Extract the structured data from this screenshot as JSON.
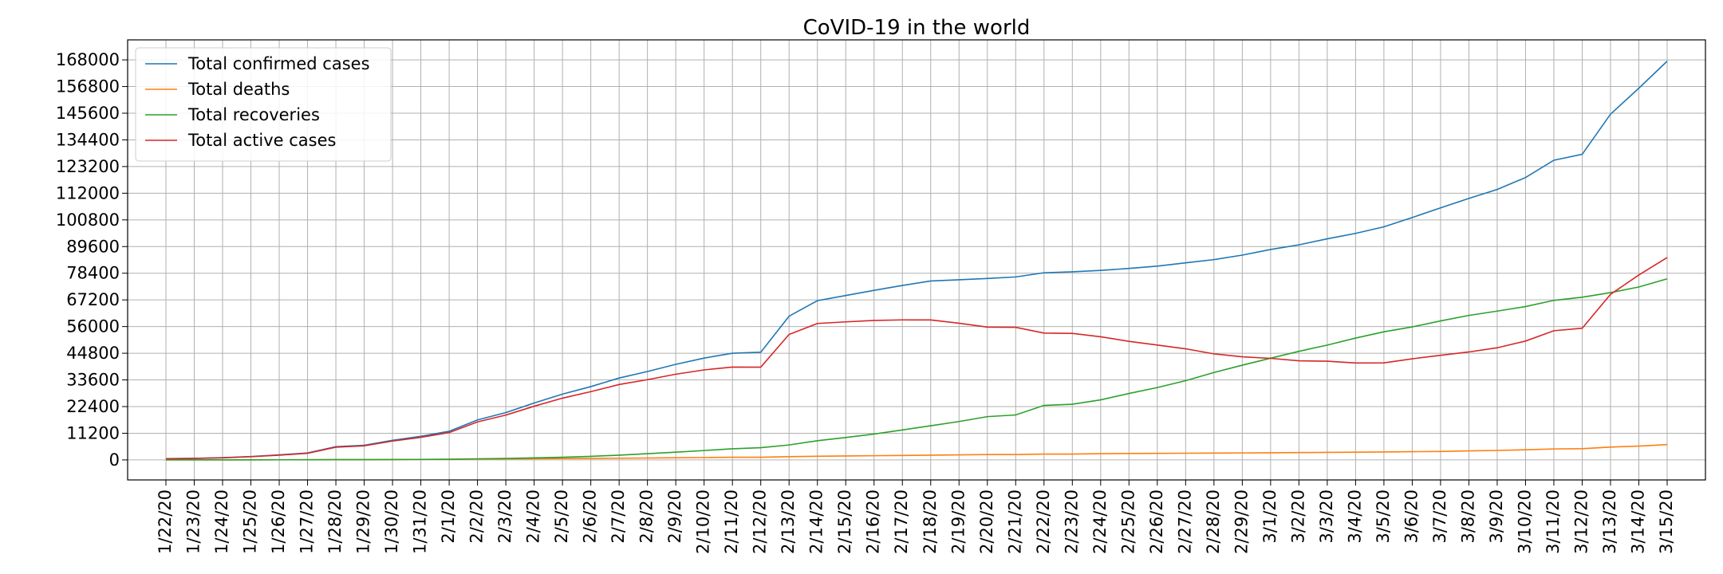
{
  "chart_data": {
    "type": "line",
    "title": "CoVID-19 in the world",
    "xlabel": "",
    "ylabel": "",
    "categories": [
      "1/22/20",
      "1/23/20",
      "1/24/20",
      "1/25/20",
      "1/26/20",
      "1/27/20",
      "1/28/20",
      "1/29/20",
      "1/30/20",
      "1/31/20",
      "2/1/20",
      "2/2/20",
      "2/3/20",
      "2/4/20",
      "2/5/20",
      "2/6/20",
      "2/7/20",
      "2/8/20",
      "2/9/20",
      "2/10/20",
      "2/11/20",
      "2/12/20",
      "2/13/20",
      "2/14/20",
      "2/15/20",
      "2/16/20",
      "2/17/20",
      "2/18/20",
      "2/19/20",
      "2/20/20",
      "2/21/20",
      "2/22/20",
      "2/23/20",
      "2/24/20",
      "2/25/20",
      "2/26/20",
      "2/27/20",
      "2/28/20",
      "2/29/20",
      "3/1/20",
      "3/2/20",
      "3/3/20",
      "3/4/20",
      "3/5/20",
      "3/6/20",
      "3/7/20",
      "3/8/20",
      "3/9/20",
      "3/10/20",
      "3/11/20",
      "3/12/20",
      "3/13/20",
      "3/14/20",
      "3/15/20"
    ],
    "y_ticks": [
      0,
      11200,
      22400,
      33600,
      44800,
      56000,
      67200,
      78400,
      89600,
      100800,
      112000,
      123200,
      134400,
      145600,
      156800,
      168000
    ],
    "ylim": [
      -8400,
      176400
    ],
    "grid": true,
    "legend_position": "top-left",
    "series": [
      {
        "name": "Total confirmed cases",
        "color": "#1f77b4",
        "values": [
          555,
          654,
          941,
          1434,
          2118,
          2927,
          5578,
          6166,
          8234,
          9927,
          12038,
          16787,
          19881,
          23892,
          27635,
          30794,
          34391,
          37120,
          40150,
          42762,
          44802,
          45221,
          60368,
          66885,
          69032,
          71226,
          73260,
          75138,
          75641,
          76199,
          76843,
          78599,
          78985,
          79570,
          80415,
          81397,
          82756,
          84124,
          86013,
          88371,
          90309,
          92844,
          95124,
          97886,
          101800,
          105836,
          109835,
          113582,
          118582,
          125865,
          128343,
          145193,
          156097,
          167449
        ]
      },
      {
        "name": "Total deaths",
        "color": "#ff7f0e",
        "values": [
          17,
          18,
          26,
          42,
          56,
          82,
          131,
          133,
          171,
          213,
          259,
          362,
          426,
          492,
          564,
          634,
          719,
          806,
          906,
          1013,
          1113,
          1118,
          1371,
          1523,
          1666,
          1770,
          1868,
          2007,
          2122,
          2247,
          2251,
          2458,
          2469,
          2629,
          2708,
          2770,
          2814,
          2872,
          2941,
          2996,
          3085,
          3160,
          3254,
          3348,
          3460,
          3558,
          3802,
          3988,
          4262,
          4615,
          4720,
          5404,
          5819,
          6440
        ]
      },
      {
        "name": "Total recoveries",
        "color": "#2ca02c",
        "values": [
          28,
          30,
          36,
          39,
          52,
          61,
          107,
          126,
          143,
          222,
          284,
          472,
          623,
          852,
          1124,
          1487,
          2011,
          2616,
          3244,
          3946,
          4683,
          5150,
          6295,
          8058,
          9395,
          10865,
          12583,
          14352,
          16121,
          18177,
          18890,
          22886,
          23394,
          25227,
          27905,
          30384,
          33277,
          36711,
          39782,
          42716,
          45602,
          48228,
          51170,
          53796,
          55865,
          58359,
          60694,
          62494,
          64404,
          67003,
          68324,
          70251,
          72624,
          76034
        ]
      },
      {
        "name": "Total active cases",
        "color": "#d62728",
        "values": [
          510,
          606,
          879,
          1353,
          2010,
          2784,
          5340,
          5907,
          7920,
          9492,
          11495,
          15953,
          18832,
          22548,
          25947,
          28673,
          31661,
          33698,
          36000,
          37803,
          39006,
          38953,
          52702,
          57304,
          57971,
          58591,
          58809,
          58779,
          57398,
          55775,
          55702,
          53255,
          53122,
          51714,
          49802,
          48243,
          46665,
          44541,
          43290,
          42659,
          41622,
          41456,
          40700,
          40742,
          42475,
          43919,
          45339,
          47100,
          49916,
          54247,
          55299,
          69538,
          77654,
          84975
        ]
      }
    ]
  }
}
